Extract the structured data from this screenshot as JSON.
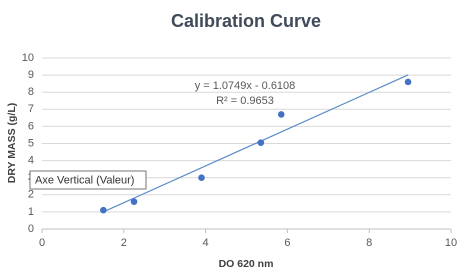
{
  "chart_data": {
    "type": "scatter",
    "title": "Calibration Curve",
    "x_label": "DO  620 nm",
    "y_label": "DRY MASS (g/L)",
    "series": [
      {
        "name": "DRY MASS (g/L)",
        "color": "#4472c4",
        "x": [
          1.5,
          2.25,
          3.9,
          5.35,
          5.85,
          8.95
        ],
        "values": [
          1.1,
          1.6,
          3.0,
          5.05,
          6.7,
          8.6
        ]
      }
    ],
    "trendline": {
      "color": "#5b8cc8",
      "x": [
        1.5,
        8.95
      ],
      "values": [
        1.002,
        9.01
      ],
      "equation": "y = 1.0749x - 0.6108",
      "r_squared": "R² = 0.9653"
    },
    "tooltip": "Axe Vertical (Valeur)",
    "xlim": [
      0,
      10
    ],
    "xticks": [
      0,
      2,
      4,
      6,
      8,
      10
    ],
    "ylim": [
      0,
      10
    ],
    "yticks": [
      0,
      1,
      2,
      3,
      4,
      5,
      6,
      7,
      8,
      9,
      10
    ],
    "grid": true
  }
}
